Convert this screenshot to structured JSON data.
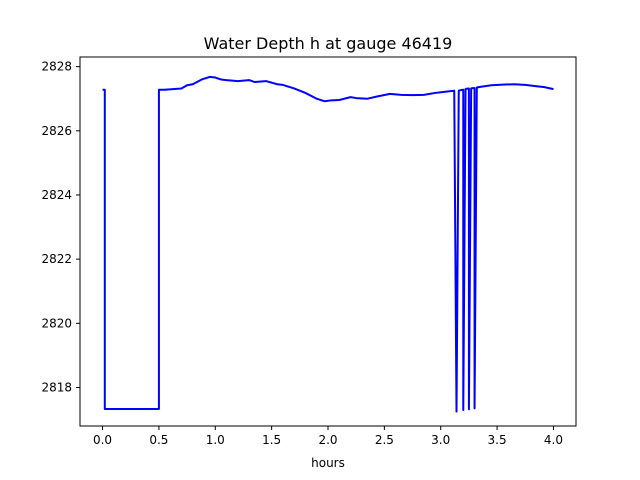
{
  "chart_data": {
    "type": "line",
    "title": "Water Depth h at gauge 46419",
    "xlabel": "hours",
    "ylabel": "",
    "xlim": [
      -0.2,
      4.2
    ],
    "ylim": [
      2816.8,
      2828.3
    ],
    "xticks": [
      0.0,
      0.5,
      1.0,
      1.5,
      2.0,
      2.5,
      3.0,
      3.5,
      4.0
    ],
    "xtick_labels": [
      "0.0",
      "0.5",
      "1.0",
      "1.5",
      "2.0",
      "2.5",
      "3.0",
      "3.5",
      "4.0"
    ],
    "yticks": [
      2818,
      2820,
      2822,
      2824,
      2826,
      2828
    ],
    "ytick_labels": [
      "2818",
      "2820",
      "2822",
      "2824",
      "2826",
      "2828"
    ],
    "grid": false,
    "series": [
      {
        "color": "#0000ff",
        "x": [
          0.0,
          0.02,
          0.02,
          0.5,
          0.5,
          0.55,
          0.7,
          0.75,
          0.8,
          0.88,
          0.95,
          1.0,
          1.05,
          1.1,
          1.2,
          1.3,
          1.35,
          1.45,
          1.55,
          1.6,
          1.7,
          1.8,
          1.9,
          1.97,
          2.03,
          2.1,
          2.2,
          2.25,
          2.35,
          2.45,
          2.55,
          2.65,
          2.75,
          2.85,
          2.95,
          3.05,
          3.12,
          3.14,
          3.16,
          3.18,
          3.2,
          3.2,
          3.22,
          3.23,
          3.25,
          3.25,
          3.27,
          3.28,
          3.3,
          3.3,
          3.32,
          3.35,
          3.45,
          3.55,
          3.65,
          3.75,
          3.85,
          3.92,
          4.0
        ],
        "y": [
          2827.28,
          2827.28,
          2817.33,
          2817.33,
          2827.28,
          2827.28,
          2827.32,
          2827.42,
          2827.45,
          2827.6,
          2827.68,
          2827.66,
          2827.6,
          2827.58,
          2827.55,
          2827.58,
          2827.52,
          2827.55,
          2827.45,
          2827.43,
          2827.32,
          2827.18,
          2827.0,
          2826.92,
          2826.95,
          2826.96,
          2827.05,
          2827.02,
          2827.0,
          2827.08,
          2827.15,
          2827.12,
          2827.11,
          2827.12,
          2827.18,
          2827.22,
          2827.25,
          2817.25,
          2827.25,
          2827.27,
          2827.28,
          2817.3,
          2827.3,
          2827.31,
          2827.32,
          2817.32,
          2827.32,
          2827.33,
          2827.33,
          2817.35,
          2827.35,
          2827.37,
          2827.42,
          2827.44,
          2827.45,
          2827.43,
          2827.39,
          2827.36,
          2827.3
        ]
      }
    ]
  }
}
